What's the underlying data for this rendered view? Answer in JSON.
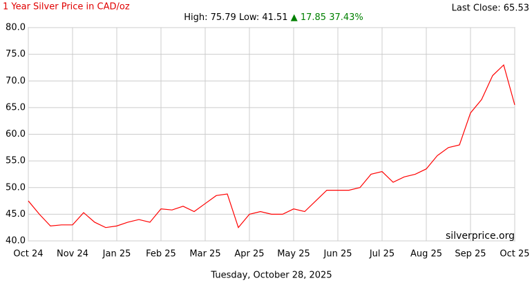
{
  "chart_data": {
    "type": "line",
    "title": "1 Year Silver Price in CAD/oz",
    "last_close_label": "Last Close: 65.53",
    "high_low_label": "High: 75.79 Low: 41.51",
    "change_label": "▲ 17.85 37.43%",
    "watermark": "silverprice.org",
    "date_label": "Tuesday, October 28, 2025",
    "categories": [
      "Oct 24",
      null,
      null,
      null,
      "Nov 24",
      null,
      null,
      null,
      "Jan 25",
      null,
      null,
      null,
      "Feb 25",
      null,
      null,
      null,
      "Mar 25",
      null,
      null,
      null,
      "Apr 25",
      null,
      null,
      null,
      "May 25",
      null,
      null,
      null,
      "Jun 25",
      null,
      null,
      null,
      "Jul 25",
      null,
      null,
      null,
      "Aug 25",
      null,
      null,
      null,
      "Sep 25",
      null,
      null,
      null,
      "Oct 25"
    ],
    "values": [
      47.5,
      45.0,
      42.8,
      43.0,
      43.0,
      45.3,
      43.5,
      42.5,
      42.8,
      43.5,
      44.0,
      43.5,
      46.0,
      45.8,
      46.5,
      45.5,
      47.0,
      48.5,
      48.8,
      42.5,
      45.0,
      45.5,
      45.0,
      45.0,
      46.0,
      45.5,
      47.5,
      49.5,
      49.5,
      49.5,
      50.0,
      52.5,
      53.0,
      51.0,
      52.0,
      52.5,
      53.5,
      56.0,
      57.5,
      58.0,
      64.0,
      66.5,
      71.0,
      73.0,
      65.5
    ],
    "color": "#ff0000",
    "ylim": [
      40,
      80
    ],
    "yticks": [
      {
        "value": 40,
        "label": "40.0"
      },
      {
        "value": 45,
        "label": "45.0"
      },
      {
        "value": 50,
        "label": "50.0"
      },
      {
        "value": 55,
        "label": "55.0"
      },
      {
        "value": 60,
        "label": "60.0"
      },
      {
        "value": 65,
        "label": "65.0"
      },
      {
        "value": 70,
        "label": "70.0"
      },
      {
        "value": 75,
        "label": "75.0"
      },
      {
        "value": 80,
        "label": "80.0"
      }
    ],
    "grid": true
  }
}
